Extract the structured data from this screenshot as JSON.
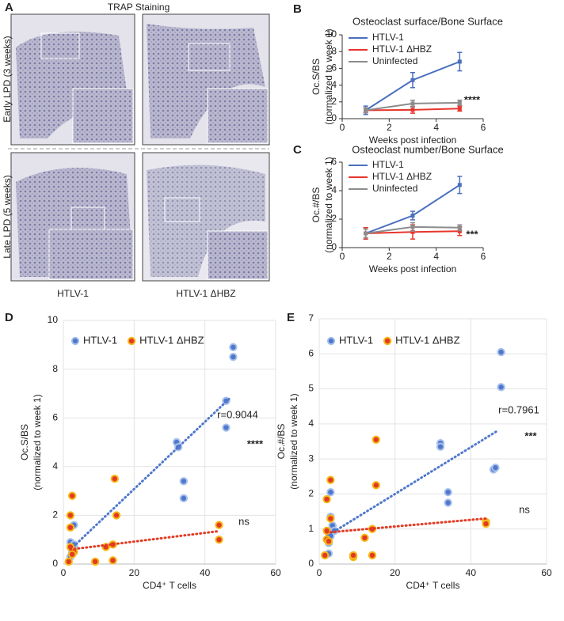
{
  "panel_a": {
    "letter": "A",
    "title": "TRAP Staining",
    "rows": [
      "Early LPD (3 weeks)",
      "Late LPD (5 weeks)"
    ],
    "columns": [
      "HTLV-1",
      "HTLV-1 ΔHBZ"
    ]
  },
  "chart_data": [
    {
      "type": "line",
      "letter": "B",
      "title": "Osteoclast surface/Bone Surface",
      "x_label": "Weeks post infection",
      "y_label": [
        "Oc.S/BS",
        "(normalized to week 1)"
      ],
      "x": [
        1,
        3,
        5
      ],
      "xlim": [
        0,
        6
      ],
      "xticks": [
        0,
        2,
        4,
        6
      ],
      "ylim": [
        0,
        10
      ],
      "yticks": [
        0,
        2,
        4,
        6,
        8,
        10
      ],
      "grid": false,
      "series": [
        {
          "name": "HTLV-1",
          "color": "#4a6fbf",
          "values": [
            1,
            4.6,
            6.8
          ],
          "errors": [
            0.5,
            0.9,
            1.1
          ]
        },
        {
          "name": "HTLV-1 ΔHBZ",
          "color": "#e8352b",
          "values": [
            1,
            1.05,
            1.2
          ],
          "errors": [
            0.3,
            0.4,
            0.3
          ]
        },
        {
          "name": "Uninfected",
          "color": "#8c8c8c",
          "values": [
            1,
            1.8,
            1.9
          ],
          "errors": [
            0.3,
            0.4,
            0.3
          ]
        }
      ],
      "annotations": [
        "****"
      ]
    },
    {
      "type": "line",
      "letter": "C",
      "title": "Osteoclast number/Bone Surface",
      "x_label": "Weeks post infection",
      "y_label": [
        "Oc.#/BS",
        "(normalized to week 1)"
      ],
      "x": [
        1,
        3,
        5
      ],
      "xlim": [
        0,
        6
      ],
      "xticks": [
        0,
        2,
        4,
        6
      ],
      "ylim": [
        0,
        6
      ],
      "yticks": [
        0,
        2,
        4,
        6
      ],
      "grid": false,
      "series": [
        {
          "name": "HTLV-1",
          "color": "#4a6fbf",
          "values": [
            1,
            2.25,
            4.4
          ],
          "errors": [
            0.4,
            0.3,
            0.6
          ]
        },
        {
          "name": "HTLV-1 ΔHBZ",
          "color": "#e8352b",
          "values": [
            1,
            1.1,
            1.15
          ],
          "errors": [
            0.4,
            0.5,
            0.3
          ]
        },
        {
          "name": "Uninfected",
          "color": "#8c8c8c",
          "values": [
            1,
            1.45,
            1.4
          ],
          "errors": [
            0.3,
            0.3,
            0.2
          ]
        }
      ],
      "annotations": [
        "***"
      ]
    },
    {
      "type": "scatter",
      "letter": "D",
      "x_label": "CD4⁺ T cells",
      "y_label": [
        "Oc.S/BS",
        "(normalized to week 1)"
      ],
      "xlim": [
        0,
        60
      ],
      "xticks": [
        0,
        20,
        40,
        60
      ],
      "ylim": [
        0,
        10
      ],
      "yticks": [
        0,
        2,
        4,
        6,
        8,
        10
      ],
      "grid": true,
      "series": [
        {
          "name": "HTLV-1",
          "color": "#4f78cc",
          "edge_color": "#a9c1ec",
          "x": [
            48,
            48,
            46,
            46,
            32,
            32.5,
            34,
            34,
            3,
            2,
            3,
            2.5,
            2,
            3
          ],
          "values": [
            8.9,
            8.5,
            6.7,
            5.6,
            5.0,
            4.8,
            3.4,
            2.7,
            1.6,
            0.9,
            0.7,
            0.5,
            0.3,
            0.8
          ],
          "trend": {
            "x": [
              2,
              47
            ],
            "y": [
              0.6,
              6.8
            ]
          }
        },
        {
          "name": "HTLV-1 ΔHBZ",
          "color": "#e23a23",
          "edge_color": "#f6b816",
          "x": [
            2.5,
            2,
            2,
            14.5,
            15,
            2,
            3,
            1.5,
            2.5,
            9,
            12,
            14,
            14,
            44,
            44
          ],
          "values": [
            2.8,
            2.0,
            1.5,
            3.5,
            2.0,
            0.7,
            0.5,
            0.1,
            0.4,
            0.1,
            0.7,
            0.8,
            0.15,
            1.6,
            1.0
          ],
          "trend": {
            "x": [
              2,
              44
            ],
            "y": [
              0.6,
              1.35
            ]
          }
        }
      ],
      "annotations": [
        "r=0.9044",
        "****",
        "ns"
      ]
    },
    {
      "type": "scatter",
      "letter": "E",
      "x_label": "CD4⁺ T cells",
      "y_label": [
        "Oc.#/BS",
        "(normalized to week 1)"
      ],
      "xlim": [
        0,
        60
      ],
      "xticks": [
        0,
        20,
        40,
        60
      ],
      "ylim": [
        0,
        7
      ],
      "yticks": [
        0,
        1,
        2,
        3,
        4,
        5,
        6,
        7
      ],
      "grid": true,
      "series": [
        {
          "name": "HTLV-1",
          "color": "#4f78cc",
          "edge_color": "#a9c1ec",
          "x": [
            48,
            48,
            46,
            46.5,
            32,
            32,
            34,
            34,
            3,
            3,
            3.5,
            4,
            2.5,
            2.5,
            3
          ],
          "values": [
            6.05,
            5.05,
            2.7,
            2.75,
            3.45,
            3.35,
            2.05,
            1.75,
            2.05,
            1.35,
            1.1,
            0.95,
            0.6,
            0.3,
            0.8
          ],
          "trend": {
            "x": [
              2,
              47
            ],
            "y": [
              0.8,
              3.8
            ]
          }
        },
        {
          "name": "HTLV-1 ΔHBZ",
          "color": "#e23a23",
          "edge_color": "#f6b816",
          "x": [
            3,
            2,
            15,
            15,
            3,
            2,
            2,
            2.5,
            1.5,
            9,
            9,
            12,
            14,
            14,
            44,
            44
          ],
          "values": [
            2.4,
            1.85,
            3.55,
            2.25,
            1.3,
            0.95,
            0.7,
            0.65,
            0.25,
            0.2,
            0.25,
            0.75,
            1.0,
            0.25,
            1.2,
            1.15
          ],
          "trend": {
            "x": [
              2,
              44
            ],
            "y": [
              0.9,
              1.3
            ]
          }
        }
      ],
      "annotations": [
        "r=0.7961",
        "***",
        "ns"
      ]
    }
  ]
}
